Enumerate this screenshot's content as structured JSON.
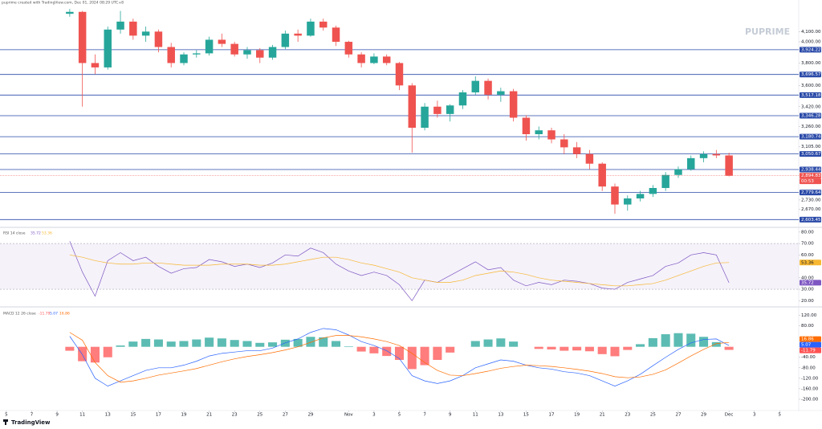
{
  "header": "puprime created with TradingView.com, Dec 01, 2024 08:29 UTC+8",
  "watermark": "PUPRIME",
  "footer": "TradingView",
  "chart_data": [
    {
      "type": "candlestick",
      "log": true,
      "xlim": [
        -0.5,
        62.5
      ],
      "ylim": [
        2570,
        4340
      ],
      "up_color": "#26a69a",
      "down_color": "#ef5350",
      "level_color": "#2a4aa8",
      "xticks": [
        {
          "value": 0,
          "label": "5"
        },
        {
          "value": 2,
          "label": "7"
        },
        {
          "value": 4,
          "label": "9"
        },
        {
          "value": 6,
          "label": "11"
        },
        {
          "value": 8,
          "label": "13"
        },
        {
          "value": 10,
          "label": "15"
        },
        {
          "value": 12,
          "label": "17"
        },
        {
          "value": 14,
          "label": "19"
        },
        {
          "value": 16,
          "label": "21"
        },
        {
          "value": 18,
          "label": "23"
        },
        {
          "value": 20,
          "label": "25"
        },
        {
          "value": 22,
          "label": "27"
        },
        {
          "value": 24,
          "label": "29"
        },
        {
          "value": 27,
          "label": "Nov"
        },
        {
          "value": 29,
          "label": "3"
        },
        {
          "value": 31,
          "label": "5"
        },
        {
          "value": 33,
          "label": "7"
        },
        {
          "value": 35,
          "label": "9"
        },
        {
          "value": 37,
          "label": "11"
        },
        {
          "value": 39,
          "label": "13"
        },
        {
          "value": 41,
          "label": "15"
        },
        {
          "value": 43,
          "label": "17"
        },
        {
          "value": 45,
          "label": "19"
        },
        {
          "value": 47,
          "label": "21"
        },
        {
          "value": 49,
          "label": "23"
        },
        {
          "value": 51,
          "label": "25"
        },
        {
          "value": 53,
          "label": "27"
        },
        {
          "value": 55,
          "label": "29"
        },
        {
          "value": 57,
          "label": "Dec"
        },
        {
          "value": 59,
          "label": "3"
        },
        {
          "value": 61,
          "label": "5"
        }
      ],
      "yticks": [
        {
          "value": 4100,
          "label": "4,100.00"
        },
        {
          "value": 4000,
          "label": "4,000.00"
        },
        {
          "value": 3800,
          "label": "3,800.00"
        },
        {
          "value": 3600,
          "label": "3,600.00"
        },
        {
          "value": 3420,
          "label": "3,420.00"
        },
        {
          "value": 3260,
          "label": "3,260.00"
        },
        {
          "value": 3105,
          "label": "3,105.00"
        },
        {
          "value": 2730,
          "label": "2,730.00"
        },
        {
          "value": 2670,
          "label": "2,670.00"
        }
      ],
      "levels": [
        {
          "value": 3924.22,
          "label": "3,924.22"
        },
        {
          "value": 3696.57,
          "label": "3,696.57"
        },
        {
          "value": 3517.18,
          "label": "3,517.18"
        },
        {
          "value": 3346.28,
          "label": "3,346.28"
        },
        {
          "value": 3180.74,
          "label": "3,180.74"
        },
        {
          "value": 3050.67,
          "label": "3,050.67"
        },
        {
          "value": 2938.44,
          "label": "2,938.44"
        },
        {
          "value": 2779.64,
          "label": "2,779.64"
        },
        {
          "value": 2603.45,
          "label": "2,603.45"
        }
      ],
      "current_price": {
        "value": 2894.83,
        "label": "2,894.83"
      },
      "countdown": "00:53",
      "x": [
        5,
        6,
        7,
        8,
        9,
        10,
        11,
        12,
        13,
        14,
        15,
        16,
        17,
        18,
        19,
        20,
        21,
        22,
        23,
        24,
        25,
        26,
        27,
        28,
        29,
        30,
        31,
        32,
        33,
        34,
        35,
        36,
        37,
        38,
        39,
        40,
        41,
        42,
        43,
        44,
        45,
        46,
        47,
        48,
        49,
        50,
        51,
        52,
        53,
        54,
        55,
        56,
        57
      ],
      "open": [
        4280,
        4300,
        3800,
        3760,
        4120,
        4200,
        4060,
        4100,
        3950,
        3800,
        3880,
        3890,
        4020,
        3980,
        3880,
        3920,
        3850,
        3950,
        4080,
        4060,
        4200,
        4140,
        4000,
        3880,
        3800,
        3860,
        3800,
        3600,
        3250,
        3420,
        3360,
        3430,
        3540,
        3640,
        3520,
        3550,
        3330,
        3200,
        3230,
        3160,
        3100,
        3050,
        2980,
        2820,
        2700,
        2740,
        2770,
        2810,
        2900,
        2940,
        3020,
        3050,
        3040
      ],
      "high": [
        4330,
        4310,
        3880,
        4150,
        4310,
        4230,
        4150,
        4120,
        3990,
        3900,
        3920,
        4050,
        4080,
        4000,
        3950,
        3940,
        3970,
        4110,
        4120,
        4230,
        4230,
        4160,
        4010,
        3900,
        3890,
        3880,
        3810,
        3620,
        3450,
        3470,
        3440,
        3560,
        3680,
        3660,
        3580,
        3570,
        3350,
        3260,
        3250,
        3200,
        3140,
        3080,
        2990,
        2840,
        2760,
        2790,
        2830,
        2920,
        2960,
        3040,
        3070,
        3080,
        3060
      ],
      "low": [
        4250,
        3420,
        3700,
        3740,
        4080,
        4020,
        4000,
        3900,
        3760,
        3780,
        3850,
        3870,
        3950,
        3860,
        3840,
        3800,
        3830,
        3930,
        4000,
        4050,
        4110,
        3960,
        3850,
        3760,
        3790,
        3780,
        3560,
        3060,
        3230,
        3330,
        3300,
        3400,
        3520,
        3480,
        3460,
        3300,
        3150,
        3160,
        3130,
        3050,
        3020,
        2940,
        2790,
        2640,
        2660,
        2720,
        2750,
        2790,
        2880,
        2930,
        2990,
        3020,
        2890
      ],
      "close": [
        4300,
        3800,
        3760,
        4120,
        4200,
        4060,
        4100,
        3950,
        3800,
        3880,
        3890,
        4020,
        3980,
        3880,
        3920,
        3850,
        3950,
        4080,
        4060,
        4200,
        4140,
        4000,
        3880,
        3800,
        3860,
        3800,
        3600,
        3250,
        3420,
        3360,
        3430,
        3540,
        3640,
        3520,
        3550,
        3330,
        3200,
        3230,
        3160,
        3100,
        3050,
        2980,
        2820,
        2700,
        2740,
        2770,
        2810,
        2900,
        2940,
        3020,
        3050,
        3040,
        2894.83
      ]
    },
    {
      "type": "line",
      "title": "RSI 14 close",
      "xlim": [
        -0.5,
        62.5
      ],
      "ylim": [
        16,
        82
      ],
      "band": [
        30,
        70
      ],
      "band_color": "#7e57c2",
      "yticks": [
        {
          "value": 80,
          "label": "80.00"
        },
        {
          "value": 70,
          "label": "70.00"
        },
        {
          "value": 60,
          "label": "60.00"
        },
        {
          "value": 40,
          "label": "40.00"
        },
        {
          "value": 30,
          "label": "30.00"
        },
        {
          "value": 20,
          "label": "20.00"
        }
      ],
      "x": [
        5,
        6,
        7,
        8,
        9,
        10,
        11,
        12,
        13,
        14,
        15,
        16,
        17,
        18,
        19,
        20,
        21,
        22,
        23,
        24,
        25,
        26,
        27,
        28,
        29,
        30,
        31,
        32,
        33,
        34,
        35,
        36,
        37,
        38,
        39,
        40,
        41,
        42,
        43,
        44,
        45,
        46,
        47,
        48,
        49,
        50,
        51,
        52,
        53,
        54,
        55,
        56,
        57
      ],
      "series": [
        {
          "color": "#7e57c2",
          "values": [
            72,
            45,
            24,
            55,
            62,
            55,
            58,
            50,
            44,
            48,
            49,
            56,
            54,
            50,
            52,
            49,
            53,
            60,
            59,
            66,
            62,
            52,
            46,
            42,
            45,
            42,
            34,
            20,
            38,
            36,
            42,
            48,
            54,
            47,
            49,
            38,
            33,
            36,
            34,
            38,
            37,
            35,
            31,
            30,
            36,
            39,
            42,
            50,
            53,
            60,
            62,
            60,
            35.72
          ]
        },
        {
          "color": "#f7b731",
          "values": [
            60,
            58,
            55,
            53,
            52,
            52,
            53,
            53,
            52,
            51,
            51,
            51,
            52,
            52,
            52,
            51,
            51,
            52,
            54,
            56,
            58,
            58,
            56,
            53,
            51,
            48,
            45,
            40,
            38,
            36,
            36,
            38,
            42,
            44,
            46,
            45,
            43,
            40,
            38,
            37,
            36,
            35,
            34,
            33,
            33,
            34,
            35,
            38,
            42,
            46,
            50,
            53,
            53.36
          ]
        }
      ]
    },
    {
      "type": "macd",
      "title": "MACD 12 26 close",
      "xlim": [
        -0.5,
        62.5
      ],
      "ylim": [
        -240,
        140
      ],
      "up_color": "#26a69a",
      "down_color": "#ff5252",
      "yticks": [
        {
          "value": 120,
          "label": "120.00"
        },
        {
          "value": 80,
          "label": "80.00"
        },
        {
          "value": -40,
          "label": "-40.00"
        },
        {
          "value": -80,
          "label": "-80.00"
        },
        {
          "value": -120,
          "label": "-120.00"
        },
        {
          "value": -160,
          "label": "-160.00"
        },
        {
          "value": -200,
          "label": "-200.00"
        }
      ],
      "x": [
        5,
        6,
        7,
        8,
        9,
        10,
        11,
        12,
        13,
        14,
        15,
        16,
        17,
        18,
        19,
        20,
        21,
        22,
        23,
        24,
        25,
        26,
        27,
        28,
        29,
        30,
        31,
        32,
        33,
        34,
        35,
        36,
        37,
        38,
        39,
        40,
        41,
        42,
        43,
        44,
        45,
        46,
        47,
        48,
        49,
        50,
        51,
        52,
        53,
        54,
        55,
        56,
        57
      ],
      "histogram": [
        -15,
        -55,
        -60,
        -40,
        5,
        20,
        30,
        28,
        20,
        22,
        28,
        35,
        32,
        26,
        22,
        15,
        17,
        27,
        30,
        38,
        36,
        22,
        2,
        -18,
        -25,
        -35,
        -50,
        -85,
        -70,
        -50,
        -22,
        0,
        22,
        28,
        32,
        20,
        0,
        -8,
        -10,
        -15,
        -14,
        -17,
        -28,
        -36,
        -12,
        10,
        33,
        48,
        52,
        50,
        38,
        18,
        -11.79
      ],
      "series": [
        {
          "color": "#2962ff",
          "values": [
            40,
            -30,
            -120,
            -150,
            -130,
            -110,
            -90,
            -80,
            -80,
            -70,
            -55,
            -35,
            -25,
            -20,
            -15,
            -15,
            -5,
            15,
            30,
            55,
            70,
            65,
            45,
            20,
            5,
            -15,
            -45,
            -110,
            -130,
            -140,
            -130,
            -110,
            -80,
            -65,
            -50,
            -55,
            -70,
            -80,
            -85,
            -95,
            -100,
            -110,
            -130,
            -150,
            -130,
            -105,
            -72,
            -40,
            -10,
            15,
            28,
            30,
            5.07
          ]
        },
        {
          "color": "#ff6d00",
          "values": [
            55,
            25,
            -60,
            -110,
            -135,
            -130,
            -120,
            -108,
            -100,
            -92,
            -83,
            -70,
            -57,
            -46,
            -37,
            -30,
            -22,
            -12,
            0,
            17,
            34,
            43,
            43,
            38,
            30,
            20,
            5,
            -25,
            -60,
            -90,
            -108,
            -110,
            -102,
            -93,
            -82,
            -75,
            -70,
            -72,
            -75,
            -80,
            -86,
            -93,
            -102,
            -114,
            -118,
            -115,
            -105,
            -88,
            -62,
            -35,
            -10,
            12,
            16.86
          ]
        }
      ]
    }
  ]
}
